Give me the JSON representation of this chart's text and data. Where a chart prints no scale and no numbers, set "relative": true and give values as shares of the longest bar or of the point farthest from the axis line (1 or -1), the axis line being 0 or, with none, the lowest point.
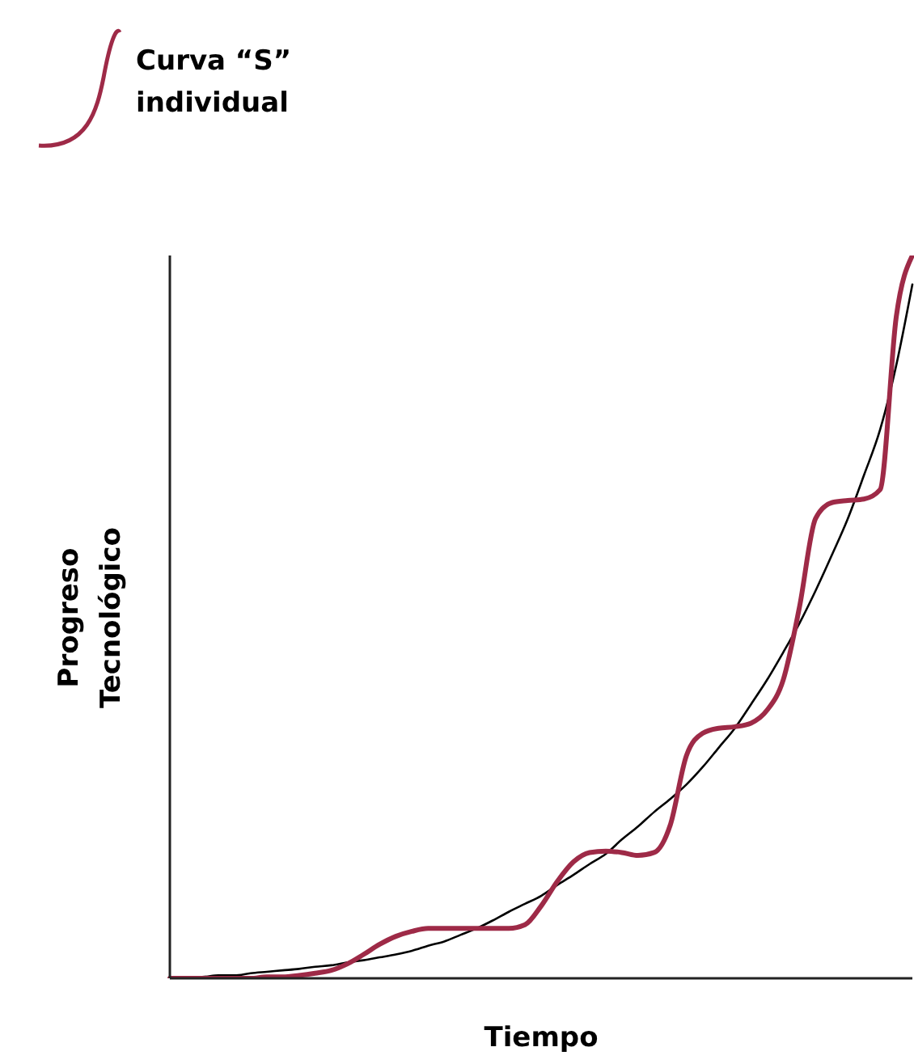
{
  "chart_data": {
    "type": "line",
    "xlabel": "Tiempo",
    "ylabel": "Progreso Tecnológico",
    "relative": true,
    "legend": "top left",
    "grid": false,
    "marker": "none",
    "line_style": "solid",
    "categories": [
      null,
      null,
      null,
      null,
      null,
      null,
      null,
      null,
      null,
      null,
      null,
      null,
      null,
      null,
      null,
      null,
      null,
      null,
      null,
      null,
      null,
      null,
      null,
      null,
      null,
      null,
      null,
      null,
      null,
      null,
      null,
      null,
      null,
      null,
      null,
      null,
      null,
      null,
      null,
      null,
      null,
      null,
      null,
      null,
      null,
      null,
      null
    ],
    "series": [
      {
        "color": "#000000",
        "values": [
          0.002,
          0.002,
          0.002,
          0.004,
          0.004,
          0.007,
          0.009,
          0.011,
          0.013,
          0.016,
          0.018,
          0.022,
          0.025,
          0.029,
          0.033,
          0.038,
          0.045,
          0.051,
          0.06,
          0.069,
          0.08,
          0.092,
          0.103,
          0.114,
          0.129,
          0.143,
          0.158,
          0.172,
          0.192,
          0.21,
          0.23,
          0.248,
          0.268,
          0.292,
          0.319,
          0.346,
          0.379,
          0.413,
          0.451,
          0.491,
          0.536,
          0.585,
          0.636,
          0.696,
          0.759,
          0.848,
          0.96
        ]
      },
      {
        "name": "Curva “S” individual",
        "color": "#9e2a47",
        "values": [
          0,
          0,
          0,
          0,
          0,
          0,
          0.002,
          0.002,
          0.004,
          0.007,
          0.011,
          0.02,
          0.033,
          0.047,
          0.058,
          0.065,
          0.069,
          0.069,
          0.069,
          0.069,
          0.069,
          0.069,
          0.074,
          0.1,
          0.134,
          0.161,
          0.174,
          0.176,
          0.174,
          0.17,
          0.174,
          0.212,
          0.308,
          0.339,
          0.346,
          0.348,
          0.353,
          0.371,
          0.413,
          0.513,
          0.636,
          0.658,
          0.661,
          0.663,
          0.676,
          0.915,
          1
        ]
      }
    ]
  }
}
